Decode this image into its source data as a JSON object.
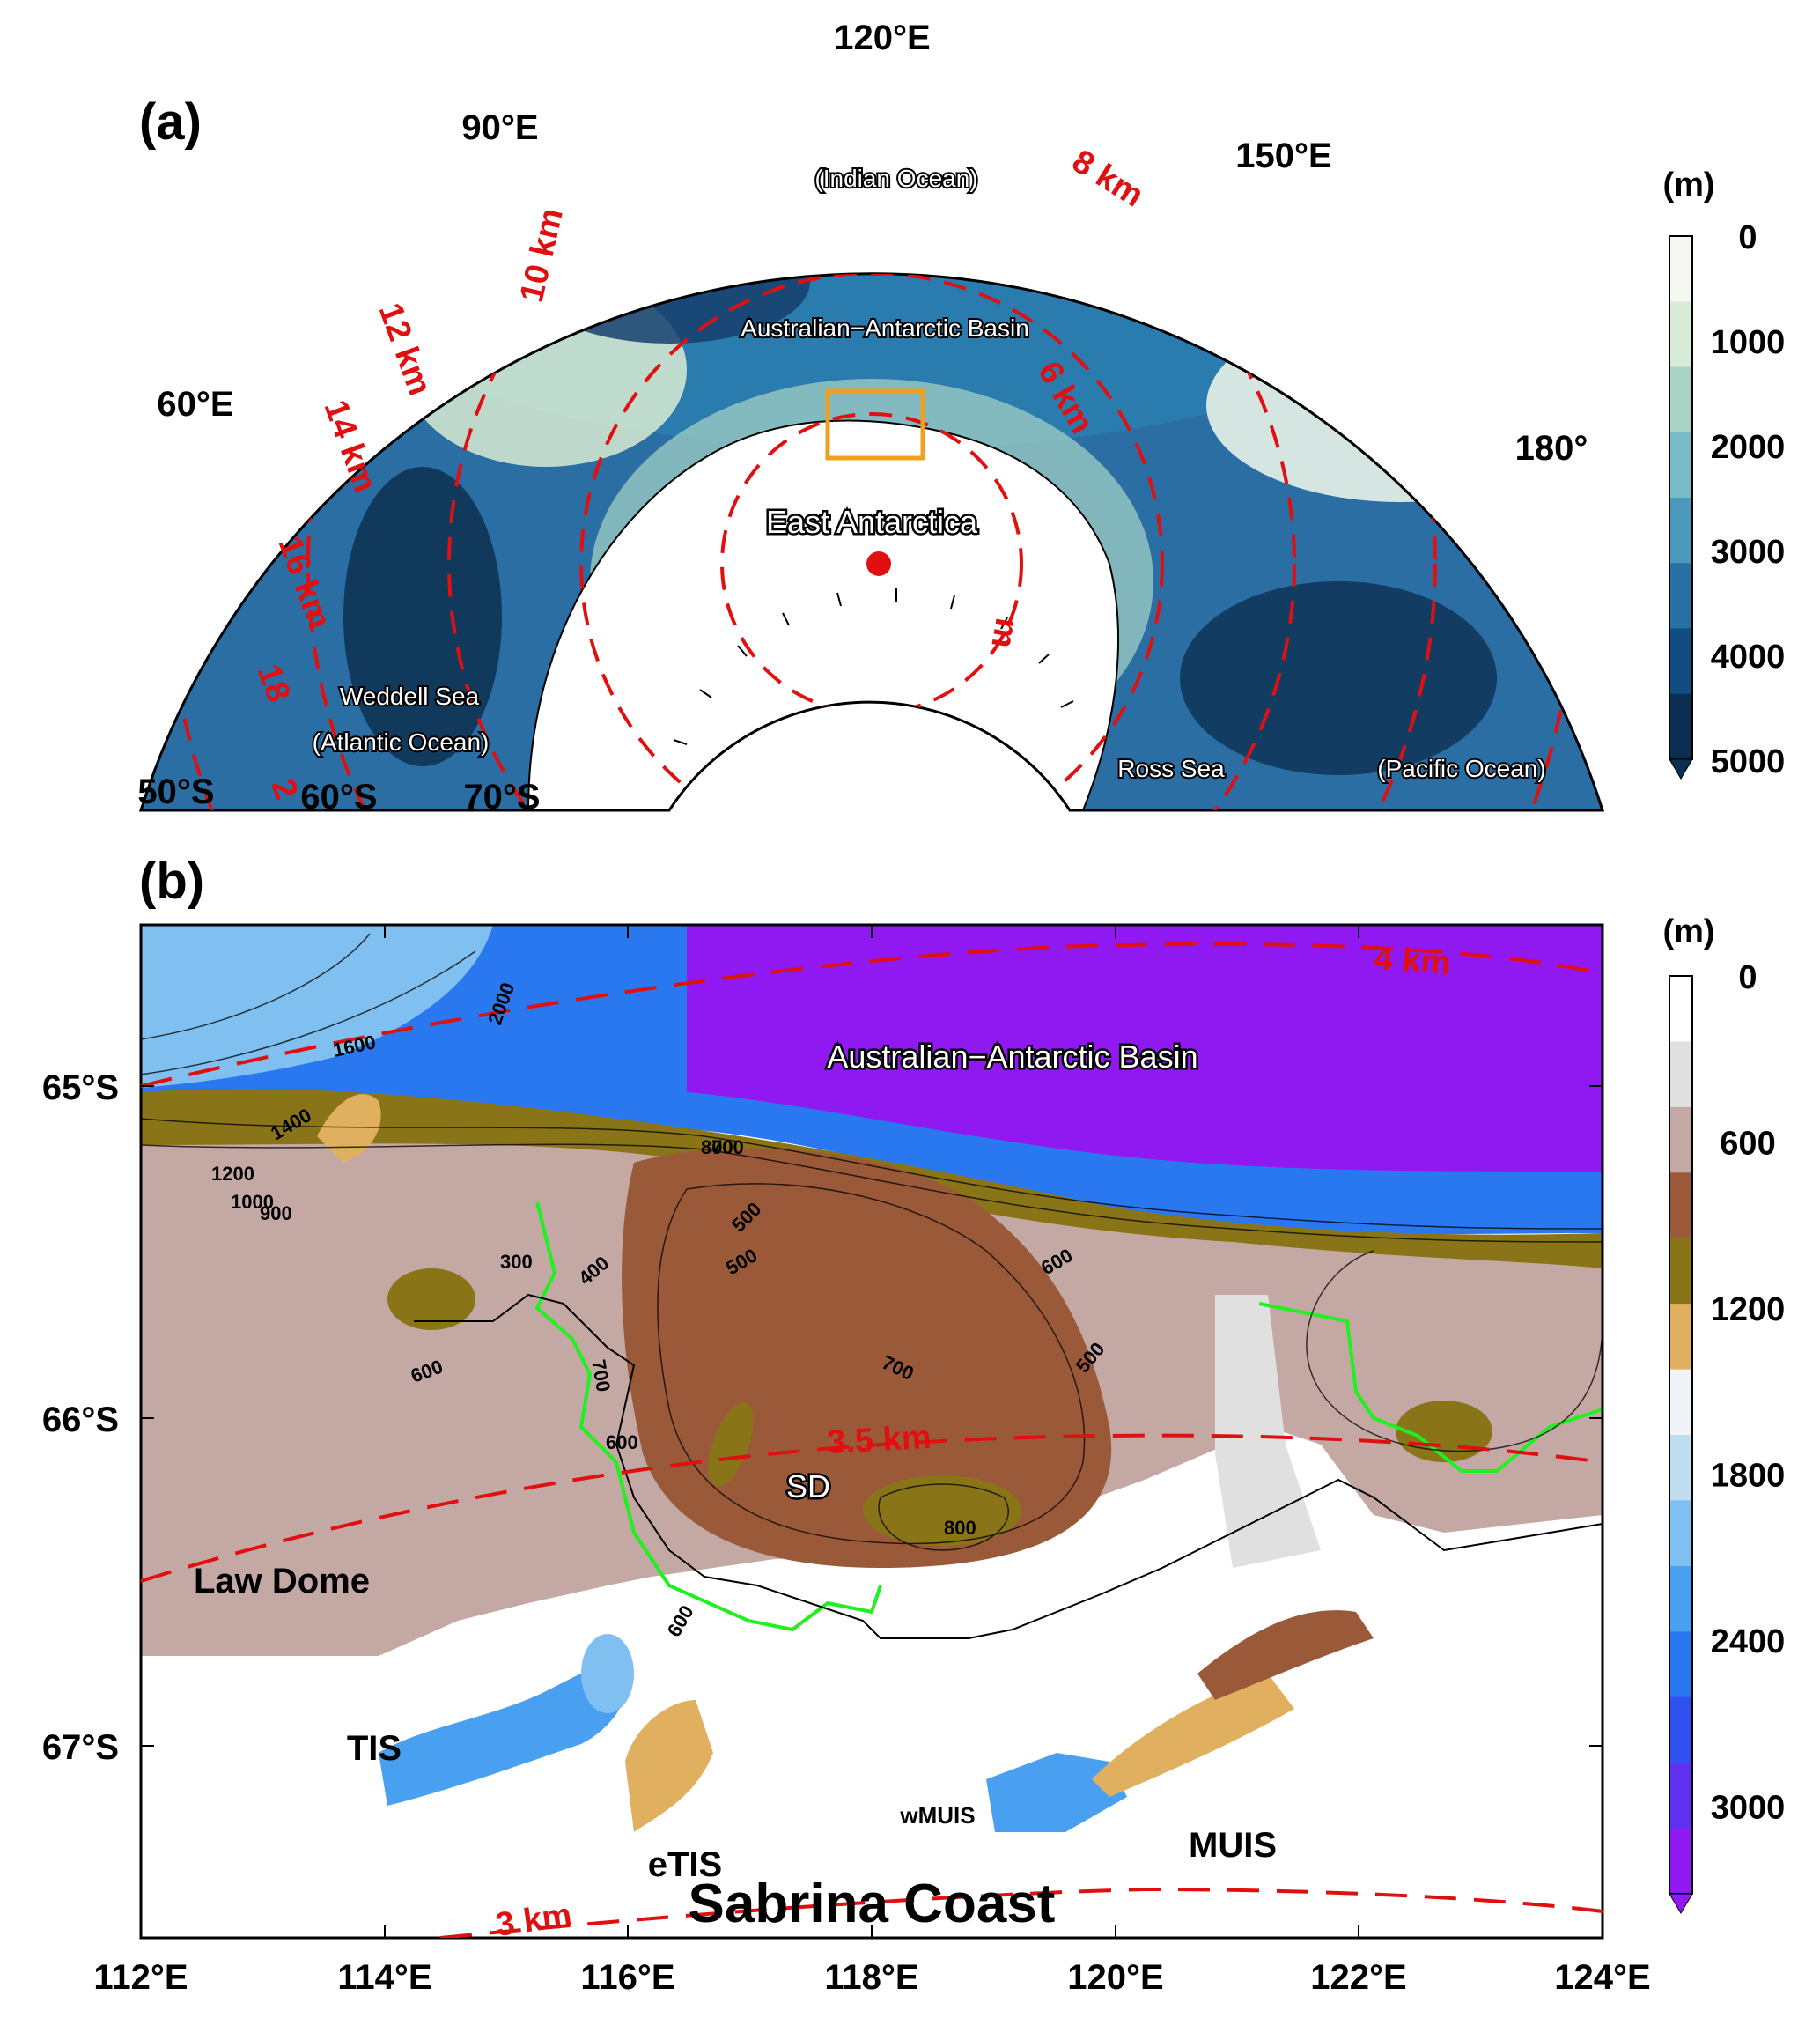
{
  "panel_a": {
    "label": "(a)",
    "longitude_labels": [
      "120°E",
      "90°E",
      "150°E",
      "60°E",
      "180°"
    ],
    "latitude_labels": [
      "50°S",
      "60°S",
      "70°S"
    ],
    "distance_labels": [
      "8 km",
      "10 km",
      "12 km",
      "14 km",
      "16 km",
      "18",
      "6 km",
      "m",
      "2"
    ],
    "places": {
      "indian": "(Indian Ocean)",
      "aab": "Australian−Antarctic Basin",
      "east": "East Antarctica",
      "weddell": "Weddell Sea",
      "atlantic": "(Atlantic Ocean)",
      "ross": "Ross Sea",
      "pacific": "(Pacific Ocean)"
    },
    "colorbar": {
      "unit": "(m)",
      "ticks": [
        "0",
        "1000",
        "2000",
        "3000",
        "4000",
        "5000"
      ],
      "colors": [
        "#f4f8f0",
        "#d8ecd8",
        "#a8d4c8",
        "#78bcc8",
        "#4a98bc",
        "#2670a4",
        "#124c80",
        "#0a2e52"
      ]
    }
  },
  "panel_b": {
    "label": "(b)",
    "lat_labels": [
      "65°S",
      "66°S",
      "67°S"
    ],
    "lon_labels": [
      "112°E",
      "114°E",
      "116°E",
      "118°E",
      "120°E",
      "122°E",
      "124°E"
    ],
    "distance_labels": [
      "4 km",
      "3.5 km",
      "3 km"
    ],
    "places": {
      "aab": "Australian−Antarctic Basin",
      "sd": "SD",
      "law": "Law Dome",
      "tis": "TIS",
      "etis": "eTIS",
      "wmuis": "wMUIS",
      "muis": "MUIS",
      "sabrina": "Sabrina Coast"
    },
    "contour_labels": [
      "2000",
      "1600",
      "1400",
      "1200",
      "1000",
      "900",
      "800",
      "700",
      "500",
      "300",
      "400",
      "700",
      "600",
      "600",
      "500",
      "700",
      "600",
      "800",
      "500",
      "600"
    ],
    "colorbar": {
      "unit": "(m)",
      "ticks": [
        "0",
        "600",
        "1200",
        "1800",
        "2400",
        "3000"
      ],
      "colors": [
        "#ffffff",
        "#e0e0e0",
        "#c4a8a4",
        "#9a5a3a",
        "#8a7418",
        "#e0b060",
        "#f0f4f8",
        "#c0dcf0",
        "#80c0f0",
        "#4aa0f0",
        "#2a78f0",
        "#3050f0",
        "#6030f0",
        "#9018f0"
      ]
    }
  }
}
